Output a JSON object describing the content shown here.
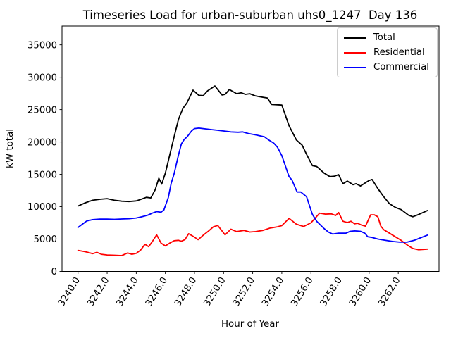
{
  "title": "Timeseries Load for urban-suburban uhs0_1247  Day 136",
  "chart_data": {
    "type": "line",
    "title": "Timeseries Load for urban-suburban uhs0_1247  Day 136",
    "xlabel": "Hour of Year",
    "ylabel": "kW total",
    "xlim": [
      3238.9,
      3264.8
    ],
    "ylim": [
      0,
      37900
    ],
    "grid": false,
    "x_ticks": [
      3240,
      3242,
      3244,
      3246,
      3248,
      3250,
      3252,
      3254,
      3256,
      3258,
      3260,
      3262
    ],
    "x_tick_labels": [
      "3240.0",
      "3242.0",
      "3244.0",
      "3246.0",
      "3248.0",
      "3250.0",
      "3252.0",
      "3254.0",
      "3256.0",
      "3258.0",
      "3260.0",
      "3262.0"
    ],
    "x_tick_rotation": -58,
    "y_ticks": [
      0,
      5000,
      10000,
      15000,
      20000,
      25000,
      30000,
      35000
    ],
    "legend": {
      "position": "upper right"
    },
    "series": [
      {
        "name": "Total",
        "color": "#000000",
        "points": [
          [
            3240.0,
            10100
          ],
          [
            3240.5,
            10600
          ],
          [
            3241.0,
            11000
          ],
          [
            3241.5,
            11150
          ],
          [
            3242.0,
            11250
          ],
          [
            3242.5,
            11000
          ],
          [
            3243.0,
            10850
          ],
          [
            3243.5,
            10800
          ],
          [
            3244.0,
            10900
          ],
          [
            3244.4,
            11200
          ],
          [
            3244.7,
            11450
          ],
          [
            3245.0,
            11350
          ],
          [
            3245.3,
            12600
          ],
          [
            3245.55,
            14400
          ],
          [
            3245.75,
            13500
          ],
          [
            3246.0,
            15200
          ],
          [
            3246.3,
            18000
          ],
          [
            3246.6,
            20800
          ],
          [
            3246.9,
            23500
          ],
          [
            3247.2,
            25150
          ],
          [
            3247.5,
            26100
          ],
          [
            3247.9,
            28000
          ],
          [
            3248.3,
            27200
          ],
          [
            3248.6,
            27150
          ],
          [
            3248.9,
            27900
          ],
          [
            3249.4,
            28650
          ],
          [
            3249.9,
            27250
          ],
          [
            3250.1,
            27350
          ],
          [
            3250.4,
            28100
          ],
          [
            3250.9,
            27450
          ],
          [
            3251.2,
            27600
          ],
          [
            3251.5,
            27350
          ],
          [
            3251.8,
            27450
          ],
          [
            3252.2,
            27100
          ],
          [
            3252.7,
            26900
          ],
          [
            3253.0,
            26800
          ],
          [
            3253.3,
            25800
          ],
          [
            3254.0,
            25700
          ],
          [
            3254.5,
            22500
          ],
          [
            3255.0,
            20300
          ],
          [
            3255.4,
            19500
          ],
          [
            3255.7,
            18100
          ],
          [
            3256.1,
            16350
          ],
          [
            3256.4,
            16200
          ],
          [
            3256.9,
            15200
          ],
          [
            3257.3,
            14650
          ],
          [
            3257.6,
            14700
          ],
          [
            3257.9,
            14950
          ],
          [
            3258.2,
            13550
          ],
          [
            3258.5,
            13950
          ],
          [
            3258.9,
            13400
          ],
          [
            3259.1,
            13550
          ],
          [
            3259.4,
            13200
          ],
          [
            3260.0,
            14050
          ],
          [
            3260.2,
            14200
          ],
          [
            3260.6,
            12800
          ],
          [
            3261.0,
            11550
          ],
          [
            3261.4,
            10450
          ],
          [
            3261.8,
            9900
          ],
          [
            3262.2,
            9550
          ],
          [
            3262.7,
            8700
          ],
          [
            3263.0,
            8450
          ],
          [
            3263.4,
            8800
          ],
          [
            3264.0,
            9400
          ]
        ]
      },
      {
        "name": "Residential",
        "color": "#ff0000",
        "points": [
          [
            3240.0,
            3250
          ],
          [
            3240.5,
            3050
          ],
          [
            3241.0,
            2750
          ],
          [
            3241.3,
            2950
          ],
          [
            3241.6,
            2650
          ],
          [
            3242.0,
            2550
          ],
          [
            3242.5,
            2500
          ],
          [
            3243.0,
            2450
          ],
          [
            3243.4,
            2850
          ],
          [
            3243.7,
            2650
          ],
          [
            3244.0,
            2800
          ],
          [
            3244.3,
            3300
          ],
          [
            3244.6,
            4200
          ],
          [
            3244.85,
            3830
          ],
          [
            3245.1,
            4600
          ],
          [
            3245.4,
            5650
          ],
          [
            3245.7,
            4380
          ],
          [
            3246.0,
            3940
          ],
          [
            3246.3,
            4380
          ],
          [
            3246.6,
            4740
          ],
          [
            3246.9,
            4810
          ],
          [
            3247.1,
            4670
          ],
          [
            3247.35,
            4920
          ],
          [
            3247.6,
            5830
          ],
          [
            3248.0,
            5300
          ],
          [
            3248.25,
            4900
          ],
          [
            3248.6,
            5600
          ],
          [
            3249.0,
            6300
          ],
          [
            3249.3,
            6900
          ],
          [
            3249.6,
            7100
          ],
          [
            3250.1,
            5650
          ],
          [
            3250.5,
            6530
          ],
          [
            3250.9,
            6160
          ],
          [
            3251.4,
            6340
          ],
          [
            3251.8,
            6090
          ],
          [
            3252.2,
            6160
          ],
          [
            3252.7,
            6340
          ],
          [
            3253.2,
            6710
          ],
          [
            3253.7,
            6890
          ],
          [
            3254.0,
            7080
          ],
          [
            3254.5,
            8200
          ],
          [
            3255.0,
            7300
          ],
          [
            3255.5,
            6950
          ],
          [
            3256.0,
            7500
          ],
          [
            3256.6,
            9000
          ],
          [
            3257.0,
            8850
          ],
          [
            3257.4,
            8900
          ],
          [
            3257.7,
            8650
          ],
          [
            3257.9,
            9100
          ],
          [
            3258.2,
            7750
          ],
          [
            3258.5,
            7550
          ],
          [
            3258.75,
            7750
          ],
          [
            3259.0,
            7350
          ],
          [
            3259.2,
            7450
          ],
          [
            3259.5,
            7150
          ],
          [
            3259.75,
            7000
          ],
          [
            3260.1,
            8740
          ],
          [
            3260.35,
            8740
          ],
          [
            3260.6,
            8450
          ],
          [
            3260.8,
            7000
          ],
          [
            3261.0,
            6450
          ],
          [
            3261.4,
            5900
          ],
          [
            3261.8,
            5350
          ],
          [
            3262.2,
            4800
          ],
          [
            3262.6,
            4100
          ],
          [
            3263.0,
            3550
          ],
          [
            3263.4,
            3350
          ],
          [
            3264.0,
            3450
          ]
        ]
      },
      {
        "name": "Commercial",
        "color": "#0000ff",
        "points": [
          [
            3240.0,
            6800
          ],
          [
            3240.3,
            7300
          ],
          [
            3240.6,
            7800
          ],
          [
            3241.0,
            8000
          ],
          [
            3241.5,
            8080
          ],
          [
            3242.0,
            8080
          ],
          [
            3242.5,
            8050
          ],
          [
            3243.0,
            8100
          ],
          [
            3243.5,
            8150
          ],
          [
            3244.0,
            8250
          ],
          [
            3244.4,
            8450
          ],
          [
            3244.8,
            8700
          ],
          [
            3245.1,
            9000
          ],
          [
            3245.4,
            9240
          ],
          [
            3245.7,
            9150
          ],
          [
            3245.9,
            9500
          ],
          [
            3246.2,
            11400
          ],
          [
            3246.4,
            13600
          ],
          [
            3246.6,
            15100
          ],
          [
            3246.9,
            18000
          ],
          [
            3247.1,
            19700
          ],
          [
            3247.3,
            20400
          ],
          [
            3247.5,
            20800
          ],
          [
            3247.8,
            21700
          ],
          [
            3248.0,
            22070
          ],
          [
            3248.3,
            22140
          ],
          [
            3248.7,
            22030
          ],
          [
            3249.2,
            21900
          ],
          [
            3249.6,
            21800
          ],
          [
            3250.0,
            21700
          ],
          [
            3250.5,
            21550
          ],
          [
            3251.0,
            21500
          ],
          [
            3251.3,
            21550
          ],
          [
            3251.7,
            21300
          ],
          [
            3252.2,
            21100
          ],
          [
            3252.5,
            20950
          ],
          [
            3252.8,
            20800
          ],
          [
            3253.1,
            20300
          ],
          [
            3253.45,
            19800
          ],
          [
            3253.7,
            19200
          ],
          [
            3254.0,
            17900
          ],
          [
            3254.5,
            14650
          ],
          [
            3254.7,
            14100
          ],
          [
            3255.05,
            12270
          ],
          [
            3255.3,
            12270
          ],
          [
            3255.7,
            11550
          ],
          [
            3256.1,
            8820
          ],
          [
            3256.4,
            7730
          ],
          [
            3256.9,
            6630
          ],
          [
            3257.2,
            6080
          ],
          [
            3257.5,
            5770
          ],
          [
            3257.9,
            5900
          ],
          [
            3258.4,
            5900
          ],
          [
            3258.7,
            6200
          ],
          [
            3259.0,
            6260
          ],
          [
            3259.4,
            6200
          ],
          [
            3259.7,
            5900
          ],
          [
            3259.9,
            5360
          ],
          [
            3260.2,
            5250
          ],
          [
            3260.6,
            5000
          ],
          [
            3261.1,
            4810
          ],
          [
            3261.6,
            4630
          ],
          [
            3262.1,
            4520
          ],
          [
            3262.6,
            4520
          ],
          [
            3263.1,
            4810
          ],
          [
            3263.5,
            5170
          ],
          [
            3264.0,
            5610
          ]
        ]
      }
    ]
  }
}
